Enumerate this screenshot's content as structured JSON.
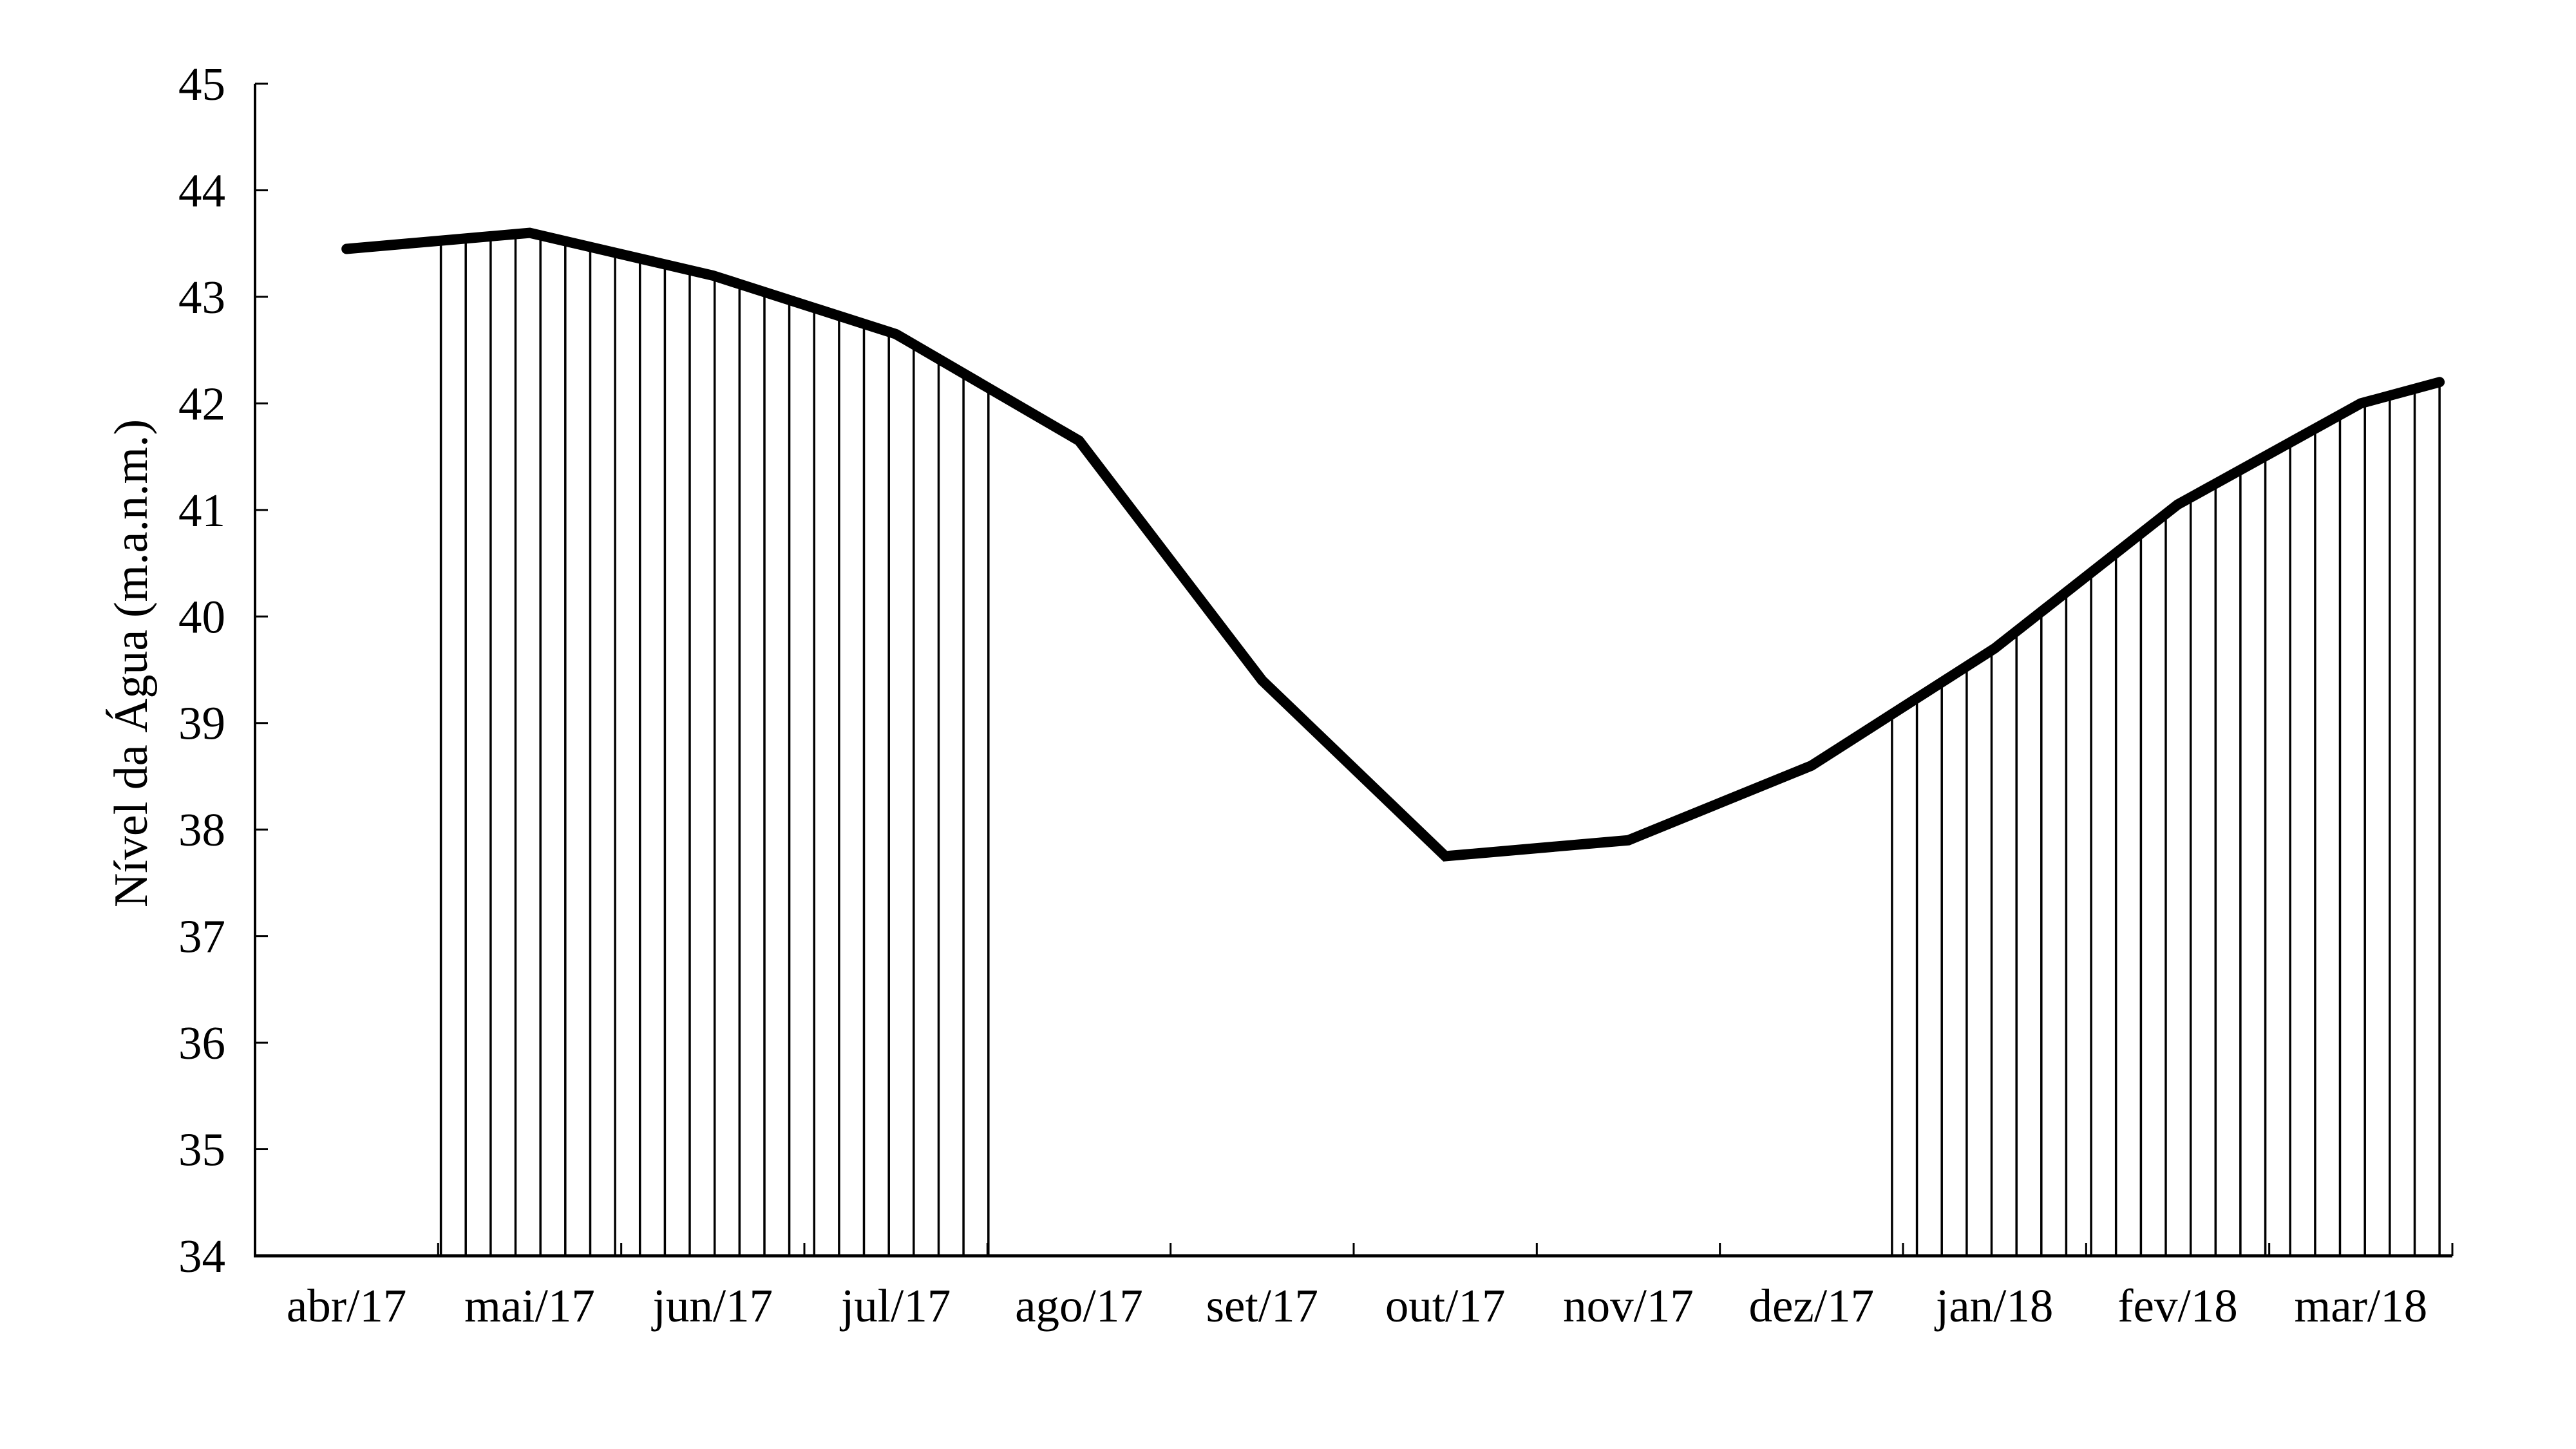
{
  "chart_data": {
    "type": "line",
    "title": "",
    "xlabel": "",
    "ylabel": "Nível da Água (m.a.n.m.)",
    "ylim": [
      34,
      45
    ],
    "ytick_step": 1,
    "yticks": [
      45,
      44,
      43,
      42,
      41,
      40,
      39,
      38,
      37,
      36,
      35,
      34
    ],
    "categories": [
      "abr/17",
      "mai/17",
      "jun/17",
      "jul/17",
      "ago/17",
      "set/17",
      "out/17",
      "nov/17",
      "dez/17",
      "jan/18",
      "fev/18",
      "mar/18"
    ],
    "grid": false,
    "legend": false,
    "colors": {
      "line": "#000000",
      "axis": "#000000",
      "text": "#000000",
      "hatch": "#000000",
      "background": "#ffffff"
    },
    "series": [
      {
        "name": "Nível da Água (m.a.n.m.)",
        "x_months": [
          0,
          1,
          2,
          3,
          4,
          5,
          6,
          7,
          8,
          9,
          10,
          11,
          11.43
        ],
        "values": [
          43.45,
          43.6,
          43.2,
          42.65,
          41.65,
          39.4,
          37.75,
          37.9,
          38.6,
          39.7,
          41.05,
          42.0,
          42.2
        ]
      }
    ],
    "hatch_regions": [
      {
        "start_month": 0.515,
        "end_month": 3.505,
        "line_count": 23
      },
      {
        "start_month": 8.44,
        "end_month": 11.43,
        "line_count": 23
      }
    ]
  }
}
